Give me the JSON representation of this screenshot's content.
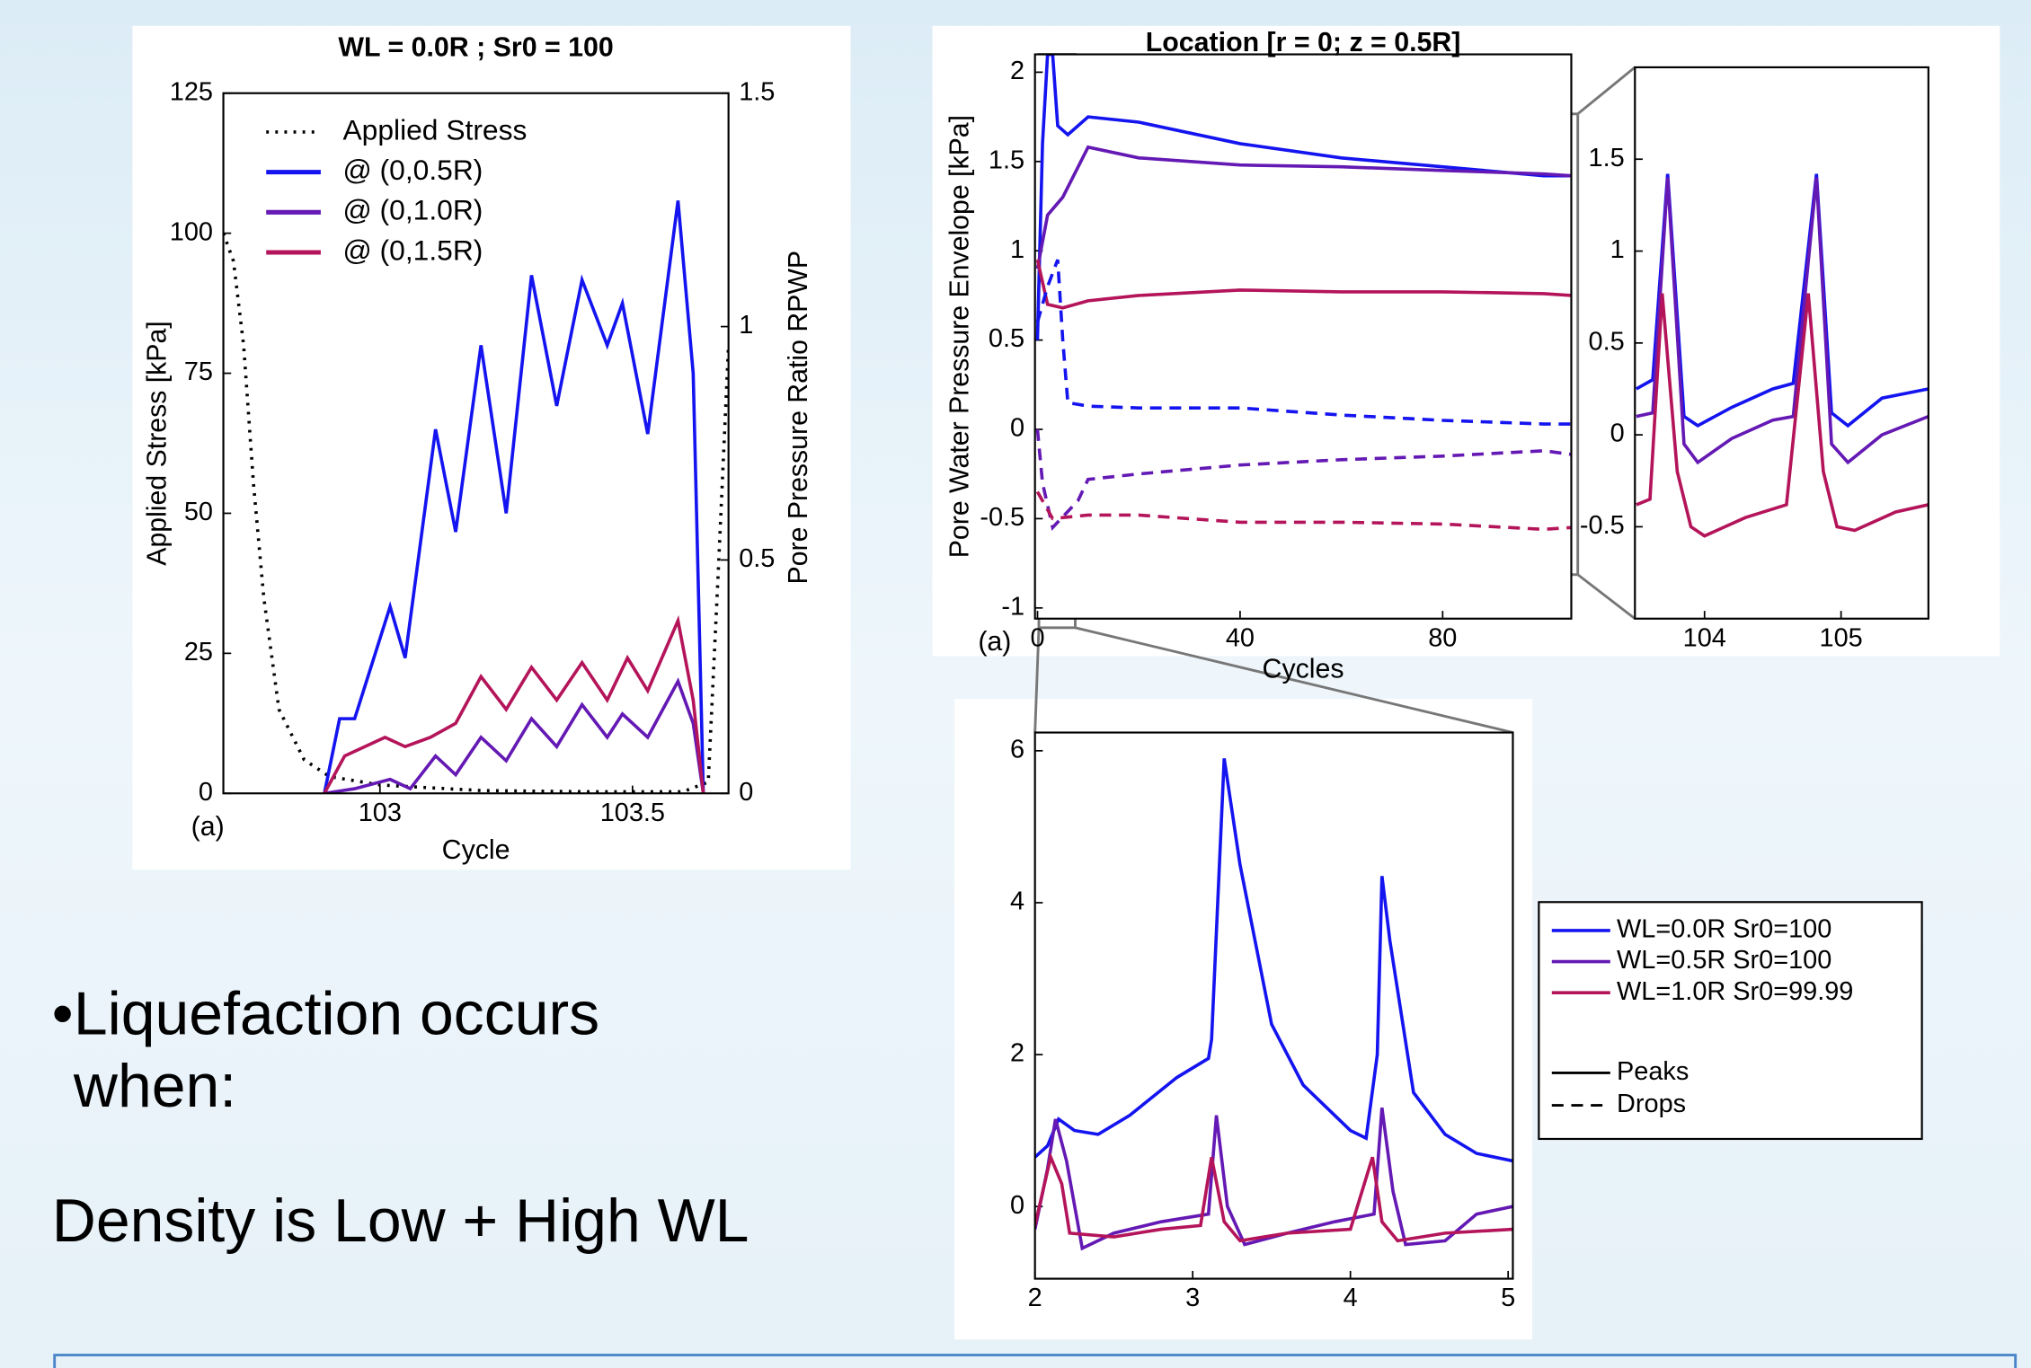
{
  "chart_data": [
    {
      "type": "line",
      "title": "WL = 0.0R ; Sr0 = 100",
      "xlabel": "Cycle",
      "ylabel": "Applied Stress [kPa]",
      "y2label": "Pore Pressure Ratio RPWP",
      "annotation": "(a)",
      "xlim": [
        102.69,
        103.69
      ],
      "xticks": [
        103,
        103.5
      ],
      "ylim": [
        0,
        125
      ],
      "yticks": [
        0,
        25,
        50,
        75,
        100,
        125
      ],
      "y2lim": [
        0,
        1.5
      ],
      "y2ticks": [
        0,
        0.5,
        1,
        1.5
      ],
      "series": [
        {
          "name": "Applied Stress",
          "color": "#000000",
          "dash": "dotted",
          "x": [
            102.69,
            102.71,
            102.73,
            102.75,
            102.77,
            102.8,
            102.85,
            102.9,
            103.0,
            103.1,
            103.2,
            103.4,
            103.6,
            103.65,
            103.67,
            103.69
          ],
          "values": [
            100,
            95,
            80,
            55,
            35,
            15,
            6,
            3,
            1.5,
            1,
            0.5,
            0.3,
            0.3,
            2,
            40,
            80
          ]
        },
        {
          "name": "@ (0,0.5R)",
          "color": "#1414f0",
          "dash": "solid",
          "axis": "y2",
          "x": [
            102.89,
            102.92,
            102.95,
            103.02,
            103.05,
            103.11,
            103.15,
            103.2,
            103.25,
            103.3,
            103.35,
            103.4,
            103.45,
            103.48,
            103.53,
            103.59,
            103.62,
            103.64
          ],
          "values": [
            0,
            0.16,
            0.16,
            0.4,
            0.29,
            0.78,
            0.56,
            0.96,
            0.6,
            1.11,
            0.83,
            1.1,
            0.96,
            1.05,
            0.77,
            1.27,
            0.9,
            0
          ]
        },
        {
          "name": "@ (0,1.0R)",
          "color": "#6419b4",
          "dash": "solid",
          "axis": "y2",
          "x": [
            102.89,
            102.95,
            103.02,
            103.06,
            103.11,
            103.15,
            103.2,
            103.25,
            103.3,
            103.35,
            103.4,
            103.45,
            103.48,
            103.53,
            103.59,
            103.62,
            103.64
          ],
          "values": [
            0,
            0.01,
            0.03,
            0.01,
            0.08,
            0.04,
            0.12,
            0.07,
            0.16,
            0.1,
            0.19,
            0.12,
            0.17,
            0.12,
            0.24,
            0.15,
            0
          ]
        },
        {
          "name": "@ (0,1.5R)",
          "color": "#b4145a",
          "dash": "solid",
          "axis": "y2",
          "x": [
            102.89,
            102.93,
            103.01,
            103.05,
            103.1,
            103.15,
            103.2,
            103.25,
            103.3,
            103.35,
            103.4,
            103.45,
            103.49,
            103.53,
            103.59,
            103.62,
            103.64
          ],
          "values": [
            0,
            0.08,
            0.12,
            0.1,
            0.12,
            0.15,
            0.25,
            0.18,
            0.27,
            0.2,
            0.28,
            0.2,
            0.29,
            0.22,
            0.37,
            0.2,
            0
          ]
        }
      ]
    },
    {
      "type": "line",
      "title": "Location [r = 0; z = 0.5R]",
      "xlabel": "Cycles",
      "ylabel": "Pore Water Pressure Envelope [kPa]",
      "annotation": "(a)",
      "xlim": [
        -0.5,
        105.4
      ],
      "xticks": [
        0,
        40,
        80
      ],
      "ylim": [
        -1.06,
        2.1
      ],
      "yticks": [
        -1,
        -0.5,
        0,
        0.5,
        1,
        1.5,
        2
      ],
      "series": [
        {
          "name": "WL=0.0R  Sr0=100",
          "color": "#1414f0",
          "dash": "solid",
          "x": [
            0,
            1,
            2,
            3,
            4,
            6,
            10,
            20,
            40,
            60,
            80,
            100,
            105.4
          ],
          "values": [
            0.5,
            1.6,
            2.1,
            2.1,
            1.7,
            1.65,
            1.75,
            1.72,
            1.6,
            1.52,
            1.47,
            1.42,
            1.42
          ]
        },
        {
          "name": "WL=0.5R  Sr0=100",
          "color": "#6419b4",
          "dash": "solid",
          "x": [
            0,
            2,
            5,
            10,
            20,
            40,
            60,
            80,
            100,
            105.4
          ],
          "values": [
            0.9,
            1.2,
            1.3,
            1.58,
            1.52,
            1.48,
            1.47,
            1.45,
            1.43,
            1.42
          ]
        },
        {
          "name": "WL=1.0R  Sr0=99.99",
          "color": "#b4145a",
          "dash": "solid",
          "x": [
            0,
            2,
            5,
            10,
            20,
            40,
            60,
            80,
            100,
            105.4
          ],
          "values": [
            0.95,
            0.7,
            0.68,
            0.72,
            0.75,
            0.78,
            0.77,
            0.77,
            0.76,
            0.75
          ]
        },
        {
          "color": "#1414f0",
          "dash": "dashed",
          "x": [
            0,
            2,
            4,
            5,
            6,
            10,
            20,
            40,
            60,
            80,
            100,
            105.4
          ],
          "values": [
            0.6,
            0.8,
            0.95,
            0.5,
            0.15,
            0.13,
            0.12,
            0.12,
            0.08,
            0.05,
            0.03,
            0.03
          ]
        },
        {
          "color": "#6419b4",
          "dash": "dashed",
          "x": [
            0,
            1,
            3,
            8,
            10,
            20,
            40,
            60,
            80,
            100,
            105.4
          ],
          "values": [
            0,
            -0.3,
            -0.55,
            -0.4,
            -0.28,
            -0.25,
            -0.2,
            -0.17,
            -0.15,
            -0.12,
            -0.14
          ]
        },
        {
          "color": "#b4145a",
          "dash": "dashed",
          "x": [
            0,
            3,
            10,
            20,
            40,
            60,
            80,
            100,
            105.4
          ],
          "values": [
            -0.35,
            -0.5,
            -0.48,
            -0.48,
            -0.52,
            -0.52,
            -0.53,
            -0.56,
            -0.55
          ]
        }
      ],
      "line_styles": [
        {
          "name": "Peaks",
          "dash": "solid"
        },
        {
          "name": "Drops",
          "dash": "dashed"
        }
      ]
    },
    {
      "type": "line",
      "xlim": [
        103.49,
        105.64
      ],
      "xticks": [
        104,
        105
      ],
      "ylim": [
        -1,
        2
      ],
      "yticks": [
        -0.5,
        0,
        0.5,
        1,
        1.5
      ],
      "series": [
        {
          "color": "#1414f0",
          "dash": "solid",
          "x": [
            103.5,
            103.62,
            103.73,
            103.85,
            103.95,
            104.2,
            104.5,
            104.65,
            104.82,
            104.93,
            105.05,
            105.3,
            105.64
          ],
          "values": [
            0.25,
            0.3,
            1.42,
            0.1,
            0.05,
            0.15,
            0.25,
            0.28,
            1.42,
            0.12,
            0.05,
            0.2,
            0.25
          ]
        },
        {
          "color": "#6419b4",
          "dash": "solid",
          "x": [
            103.5,
            103.62,
            103.73,
            103.85,
            103.95,
            104.2,
            104.5,
            104.65,
            104.82,
            104.93,
            105.05,
            105.3,
            105.64
          ],
          "values": [
            0.1,
            0.12,
            1.4,
            -0.05,
            -0.15,
            -0.02,
            0.08,
            0.1,
            1.4,
            -0.05,
            -0.15,
            0,
            0.1
          ]
        },
        {
          "color": "#b4145a",
          "dash": "solid",
          "x": [
            103.5,
            103.6,
            103.69,
            103.8,
            103.9,
            104.0,
            104.3,
            104.6,
            104.76,
            104.87,
            104.97,
            105.1,
            105.4,
            105.64
          ],
          "values": [
            -0.38,
            -0.35,
            0.77,
            -0.2,
            -0.5,
            -0.55,
            -0.45,
            -0.38,
            0.77,
            -0.2,
            -0.5,
            -0.52,
            -0.42,
            -0.38
          ]
        }
      ]
    },
    {
      "type": "line",
      "xlim": [
        2,
        5.03
      ],
      "xticks": [
        2,
        3,
        4,
        5
      ],
      "ylim": [
        -0.95,
        6.24
      ],
      "yticks": [
        0,
        2,
        4,
        6
      ],
      "series": [
        {
          "color": "#1414f0",
          "dash": "solid",
          "x": [
            2,
            2.08,
            2.15,
            2.25,
            2.4,
            2.6,
            2.9,
            3.1,
            3.12,
            3.2,
            3.3,
            3.5,
            3.7,
            4.0,
            4.1,
            4.17,
            4.2,
            4.25,
            4.4,
            4.6,
            4.8,
            5.03
          ],
          "values": [
            0.65,
            0.8,
            1.15,
            1.0,
            0.95,
            1.2,
            1.7,
            1.95,
            2.2,
            5.9,
            4.5,
            2.4,
            1.6,
            1.0,
            0.9,
            2.0,
            4.35,
            3.5,
            1.5,
            0.95,
            0.7,
            0.6
          ]
        },
        {
          "color": "#6419b4",
          "dash": "solid",
          "x": [
            2,
            2.08,
            2.13,
            2.2,
            2.3,
            2.5,
            2.8,
            3.1,
            3.15,
            3.22,
            3.33,
            3.6,
            3.9,
            4.15,
            4.2,
            4.27,
            4.35,
            4.6,
            4.8,
            5.03
          ],
          "values": [
            -0.3,
            0.5,
            1.15,
            0.6,
            -0.55,
            -0.35,
            -0.2,
            -0.1,
            1.2,
            0,
            -0.5,
            -0.35,
            -0.2,
            -0.1,
            1.3,
            0.2,
            -0.5,
            -0.45,
            -0.1,
            0
          ]
        },
        {
          "color": "#b4145a",
          "dash": "solid",
          "x": [
            2,
            2.1,
            2.17,
            2.22,
            2.5,
            2.8,
            3.05,
            3.12,
            3.2,
            3.3,
            3.6,
            4.0,
            4.14,
            4.2,
            4.3,
            4.6,
            5.03
          ],
          "values": [
            -0.25,
            0.65,
            0.3,
            -0.35,
            -0.4,
            -0.3,
            -0.25,
            0.65,
            -0.2,
            -0.45,
            -0.35,
            -0.3,
            0.65,
            -0.2,
            -0.45,
            -0.35,
            -0.3
          ]
        }
      ]
    }
  ],
  "bullets": [
    "Liquefaction occurs when:"
  ],
  "text": "Density is Low + High WL"
}
